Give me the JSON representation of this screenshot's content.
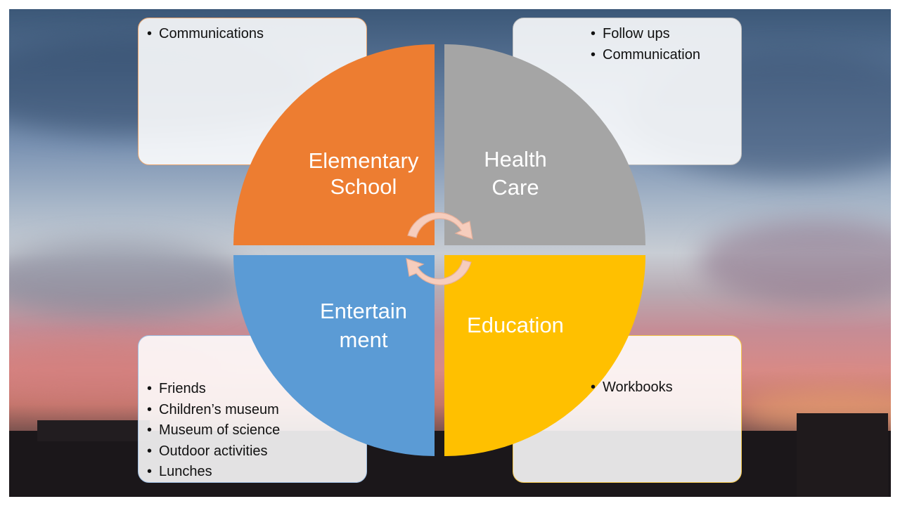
{
  "quadrants": {
    "top_left": {
      "label_line1": "Elementary",
      "label_line2": "School",
      "color": "#ed7d31"
    },
    "top_right": {
      "label_line1": "Health",
      "label_line2": "Care",
      "color": "#a5a5a5"
    },
    "bottom_left": {
      "label_line1": "Entertain",
      "label_line2": "ment",
      "color": "#5b9bd5"
    },
    "bottom_right": {
      "label_line1": "Education",
      "label_line2": "",
      "color": "#ffc000"
    }
  },
  "boxes": {
    "top_left": {
      "items": [
        "Communications"
      ]
    },
    "top_right": {
      "items": [
        "Follow ups",
        "Communication"
      ]
    },
    "bottom_right": {
      "items": [
        "Workbooks"
      ]
    },
    "bottom_left": {
      "items": [
        "Friends",
        "Children’s museum",
        "Museum of science",
        "Outdoor activities",
        "Lunches"
      ]
    }
  },
  "arrows": {
    "color": "#f6cdbd"
  }
}
